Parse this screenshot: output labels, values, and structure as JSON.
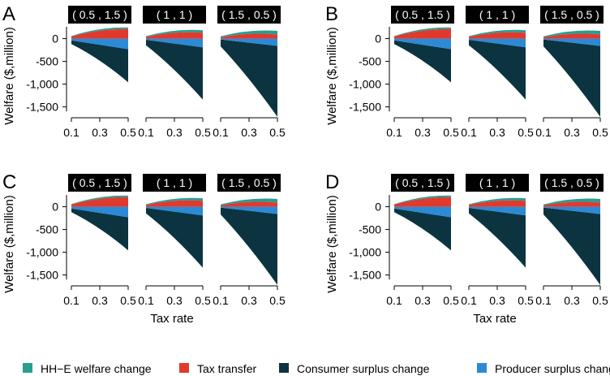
{
  "legend": {
    "items": [
      {
        "key": "hhe",
        "label": "HH−E welfare change",
        "color": "#2a9d8f"
      },
      {
        "key": "tax",
        "label": "Tax transfer",
        "color": "#e03a2f"
      },
      {
        "key": "consumer",
        "label": "Consumer surplus change",
        "color": "#0b3440"
      },
      {
        "key": "producer",
        "label": "Producer surplus change",
        "color": "#2b8ad6"
      }
    ]
  },
  "chart_data": {
    "type": "area",
    "ylabel": "Welfare ($,million)",
    "xlabel": "Tax rate",
    "ylim": [
      -1650,
      260
    ],
    "xlim": [
      0.1,
      0.5
    ],
    "yticks": [
      0,
      -500,
      -1000,
      -1500
    ],
    "ytick_labels": [
      "0",
      "-500",
      "-1,000",
      "-1,500"
    ],
    "xticks": [
      0.1,
      0.3,
      0.5
    ],
    "xtick_labels": [
      "0.1",
      "0.3",
      "0.5"
    ],
    "x": [
      0.1,
      0.5
    ],
    "panels": [
      {
        "label": "A",
        "show_xlabel": false,
        "facets": [
          {
            "title": "( 0.5 , 1.5 )",
            "values": {
              "tax": [
                50,
                210
              ],
              "hhe": [
                8,
                35
              ],
              "producer": [
                -40,
                -230
              ],
              "consumer": [
                -80,
                -730
              ]
            }
          },
          {
            "title": "( 1 , 1 )",
            "values": {
              "tax": [
                40,
                130
              ],
              "hhe": [
                15,
                55
              ],
              "producer": [
                -25,
                -190
              ],
              "consumer": [
                -120,
                -1150
              ]
            }
          },
          {
            "title": "( 1.5 , 0.5 )",
            "values": {
              "tax": [
                30,
                90
              ],
              "hhe": [
                20,
                80
              ],
              "producer": [
                -20,
                -160
              ],
              "consumer": [
                -150,
                -1560
              ]
            }
          }
        ]
      },
      {
        "label": "B",
        "show_xlabel": false,
        "facets": [
          {
            "title": "( 0.5 , 1.5 )",
            "values": {
              "tax": [
                50,
                210
              ],
              "hhe": [
                8,
                35
              ],
              "producer": [
                -40,
                -230
              ],
              "consumer": [
                -80,
                -730
              ]
            }
          },
          {
            "title": "( 1 , 1 )",
            "values": {
              "tax": [
                40,
                130
              ],
              "hhe": [
                15,
                55
              ],
              "producer": [
                -25,
                -190
              ],
              "consumer": [
                -120,
                -1150
              ]
            }
          },
          {
            "title": "( 1.5 , 0.5 )",
            "values": {
              "tax": [
                30,
                90
              ],
              "hhe": [
                20,
                80
              ],
              "producer": [
                -20,
                -160
              ],
              "consumer": [
                -150,
                -1560
              ]
            }
          }
        ]
      },
      {
        "label": "C",
        "show_xlabel": true,
        "facets": [
          {
            "title": "( 0.5 , 1.5 )",
            "values": {
              "tax": [
                50,
                210
              ],
              "hhe": [
                8,
                35
              ],
              "producer": [
                -40,
                -230
              ],
              "consumer": [
                -80,
                -730
              ]
            }
          },
          {
            "title": "( 1 , 1 )",
            "values": {
              "tax": [
                40,
                130
              ],
              "hhe": [
                15,
                55
              ],
              "producer": [
                -25,
                -190
              ],
              "consumer": [
                -120,
                -1150
              ]
            }
          },
          {
            "title": "( 1.5 , 0.5 )",
            "values": {
              "tax": [
                30,
                90
              ],
              "hhe": [
                20,
                80
              ],
              "producer": [
                -20,
                -160
              ],
              "consumer": [
                -150,
                -1560
              ]
            }
          }
        ]
      },
      {
        "label": "D",
        "show_xlabel": true,
        "facets": [
          {
            "title": "( 0.5 , 1.5 )",
            "values": {
              "tax": [
                50,
                210
              ],
              "hhe": [
                8,
                35
              ],
              "producer": [
                -40,
                -230
              ],
              "consumer": [
                -80,
                -730
              ]
            }
          },
          {
            "title": "( 1 , 1 )",
            "values": {
              "tax": [
                40,
                130
              ],
              "hhe": [
                15,
                55
              ],
              "producer": [
                -25,
                -190
              ],
              "consumer": [
                -120,
                -1150
              ]
            }
          },
          {
            "title": "( 1.5 , 0.5 )",
            "values": {
              "tax": [
                30,
                90
              ],
              "hhe": [
                20,
                80
              ],
              "producer": [
                -20,
                -160
              ],
              "consumer": [
                -150,
                -1560
              ]
            }
          }
        ]
      }
    ]
  }
}
